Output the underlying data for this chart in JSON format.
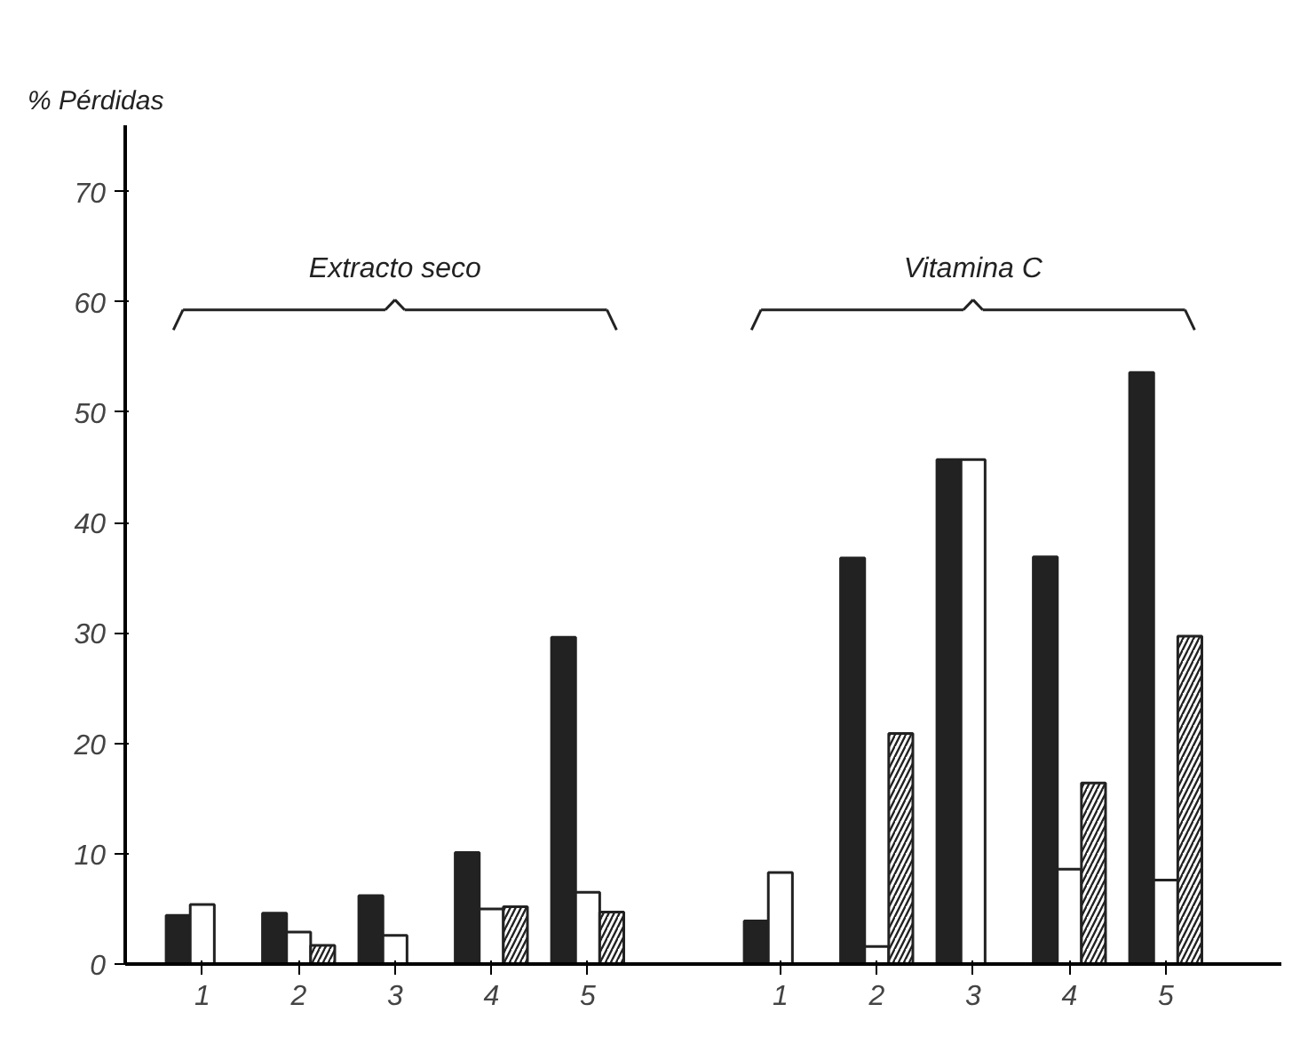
{
  "chart_data": {
    "type": "bar",
    "ylabel": "% Pérdidas",
    "categories": [
      "1",
      "2",
      "3",
      "4",
      "5",
      null,
      "1",
      "2",
      "3",
      "4",
      "5"
    ],
    "series": [
      {
        "color": "#222222",
        "values": [
          4.4,
          4.6,
          6.2,
          10.1,
          29.6,
          null,
          3.9,
          36.8,
          45.7,
          36.9,
          53.6
        ]
      },
      {
        "color": "#ffffff",
        "values": [
          5.4,
          2.9,
          2.6,
          5.0,
          6.5,
          null,
          8.3,
          1.6,
          45.7,
          8.6,
          7.6
        ]
      },
      {
        "color": "#ffffff",
        "values": [
          null,
          1.7,
          null,
          5.2,
          4.7,
          null,
          null,
          20.9,
          null,
          16.4,
          29.7
        ]
      }
    ],
    "annotations": [
      "Extracto seco",
      "Vitamina C"
    ],
    "ylim": [
      0,
      76
    ],
    "yticks": [
      0,
      10,
      20,
      30,
      40,
      50,
      60,
      70
    ],
    "grid": false
  }
}
